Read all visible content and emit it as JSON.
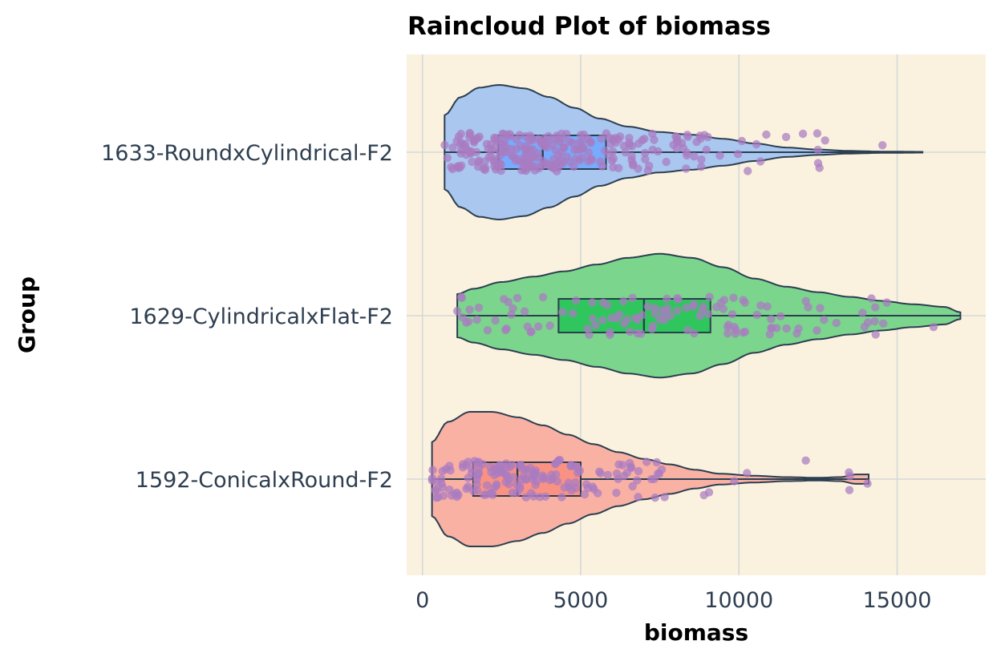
{
  "chart_data": {
    "type": "raincloud",
    "title": "Raincloud Plot of biomass",
    "xlabel": "biomass",
    "ylabel": "Group",
    "xlim": [
      -500,
      17800
    ],
    "xticks": [
      0,
      5000,
      10000,
      15000
    ],
    "grid": true,
    "legend": "none",
    "colors": {
      "panel_bg": "#faf2df",
      "grid": "#d4d8d8",
      "outline": "#2c3e50",
      "points": "#a97cc0",
      "tick_text": "#2e3e50"
    },
    "groups": [
      {
        "name": "1633-RoundxCylindrical-F2",
        "color": "#aac7f0",
        "box_color": "#6fa6ff",
        "min": 700,
        "q1": 2400,
        "median": 3800,
        "q3": 5800,
        "max": 15800,
        "violin_range": [
          700,
          15800
        ],
        "violin_profile": [
          [
            700,
            0.55
          ],
          [
            1200,
            0.82
          ],
          [
            1800,
            0.96
          ],
          [
            2400,
            1.0
          ],
          [
            3200,
            0.95
          ],
          [
            4000,
            0.82
          ],
          [
            4800,
            0.66
          ],
          [
            5600,
            0.5
          ],
          [
            6500,
            0.38
          ],
          [
            7500,
            0.3
          ],
          [
            8500,
            0.26
          ],
          [
            9500,
            0.2
          ],
          [
            10500,
            0.13
          ],
          [
            11500,
            0.07
          ],
          [
            12500,
            0.04
          ],
          [
            13500,
            0.02
          ],
          [
            14500,
            0.01
          ],
          [
            15800,
            0.006
          ]
        ],
        "points_seed": 11,
        "points_n": 260
      },
      {
        "name": "1629-CylindricalxFlat-F2",
        "color": "#7bd58d",
        "box_color": "#22c455",
        "min": 1200,
        "q1": 4300,
        "median": 7000,
        "q3": 9100,
        "max": 17000,
        "violin_range": [
          1100,
          17000
        ],
        "violin_profile": [
          [
            1100,
            0.32
          ],
          [
            1600,
            0.4
          ],
          [
            2500,
            0.5
          ],
          [
            3500,
            0.58
          ],
          [
            4500,
            0.66
          ],
          [
            5500,
            0.76
          ],
          [
            6500,
            0.86
          ],
          [
            7500,
            0.92
          ],
          [
            8500,
            0.86
          ],
          [
            9500,
            0.72
          ],
          [
            10500,
            0.55
          ],
          [
            11500,
            0.43
          ],
          [
            12500,
            0.35
          ],
          [
            13500,
            0.28
          ],
          [
            14500,
            0.22
          ],
          [
            15500,
            0.17
          ],
          [
            16500,
            0.13
          ],
          [
            17000,
            0.05
          ]
        ],
        "points_seed": 23,
        "points_n": 120
      },
      {
        "name": "1592-ConicalxRound-F2",
        "color": "#f9b1a4",
        "box_color": "#fa8d7e",
        "min": 300,
        "q1": 1600,
        "median": 3000,
        "q3": 5000,
        "max": 14100,
        "violin_range": [
          300,
          14100
        ],
        "violin_profile": [
          [
            300,
            0.55
          ],
          [
            800,
            0.85
          ],
          [
            1500,
            1.0
          ],
          [
            2200,
            1.0
          ],
          [
            3000,
            0.92
          ],
          [
            3800,
            0.8
          ],
          [
            4600,
            0.66
          ],
          [
            5400,
            0.52
          ],
          [
            6200,
            0.4
          ],
          [
            7000,
            0.3
          ],
          [
            7800,
            0.22
          ],
          [
            8600,
            0.14
          ],
          [
            9400,
            0.08
          ],
          [
            10500,
            0.05
          ],
          [
            11500,
            0.03
          ],
          [
            12500,
            0.02
          ],
          [
            13200,
            0.03
          ],
          [
            13700,
            0.07
          ],
          [
            14100,
            0.07
          ]
        ],
        "points_seed": 37,
        "points_n": 170
      }
    ]
  }
}
